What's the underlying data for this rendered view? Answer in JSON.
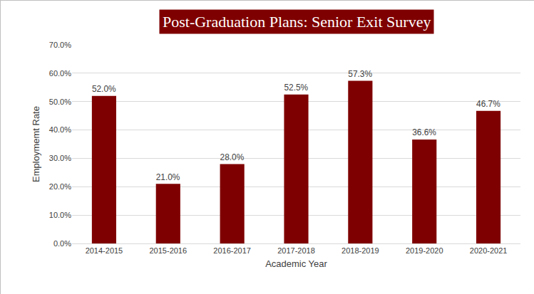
{
  "chart_data": {
    "type": "bar",
    "title": "Post-Graduation Plans: Senior Exit Survey",
    "x_label": "Academic Year",
    "y_label": "Employmemt Rate",
    "categories": [
      "2014-2015",
      "2015-2016",
      "2016-2017",
      "2017-2018",
      "2018-2019",
      "2019-2020",
      "2020-2021"
    ],
    "values": [
      52.0,
      21.0,
      28.0,
      52.5,
      57.3,
      36.6,
      46.7
    ],
    "value_labels": [
      "52.0%",
      "21.0%",
      "28.0%",
      "52.5%",
      "57.3%",
      "36.6%",
      "46.7%"
    ],
    "color": "#7f0000",
    "ylim": [
      0,
      70
    ],
    "yticks": [
      {
        "value": 0,
        "label": "0.0%"
      },
      {
        "value": 10,
        "label": "10.0%"
      },
      {
        "value": 20,
        "label": "20.0%"
      },
      {
        "value": 30,
        "label": "30.0%"
      },
      {
        "value": 40,
        "label": "40.0%"
      },
      {
        "value": 50,
        "label": "50.0%"
      },
      {
        "value": 60,
        "label": "60.0%"
      },
      {
        "value": 70,
        "label": "70.0%"
      }
    ],
    "grid": true,
    "data_labels": true
  }
}
